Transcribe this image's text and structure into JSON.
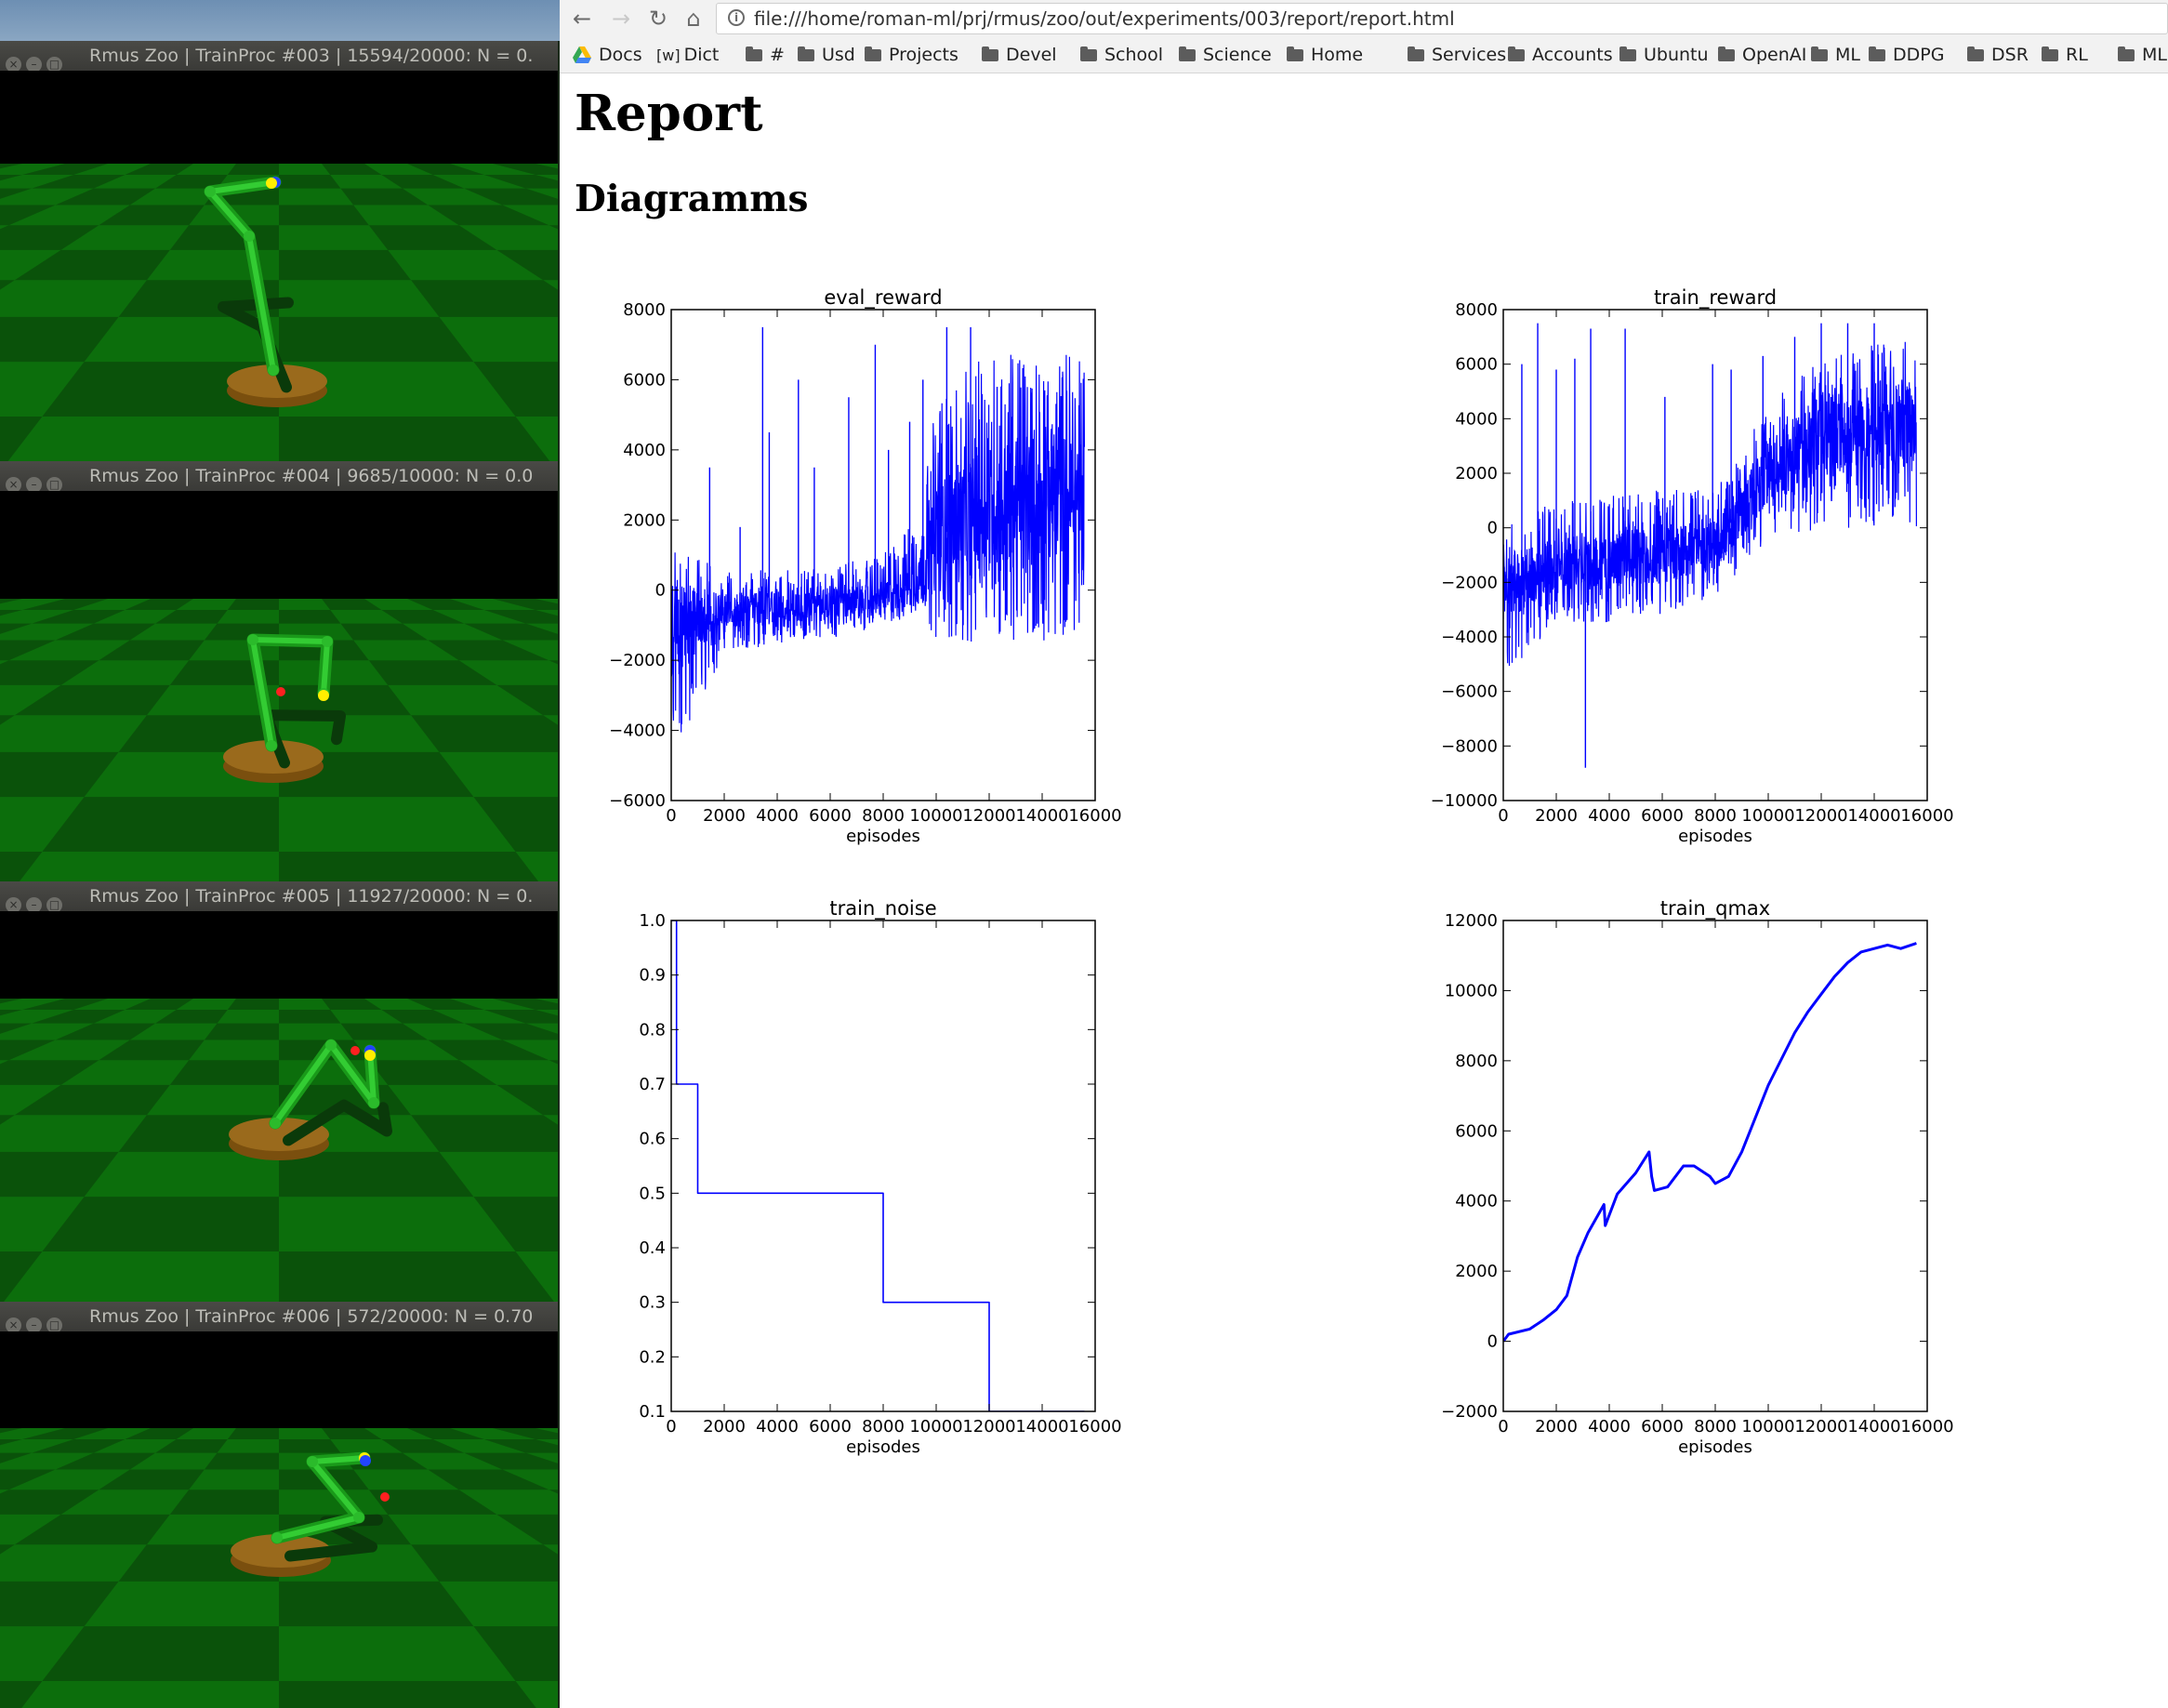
{
  "sim_windows": [
    {
      "buttons": [
        "×",
        "–",
        "□"
      ],
      "title": "Rmus Zoo  |  TrainProc #003  |  15594/20000: N = 0.",
      "top": 0
    },
    {
      "buttons": [
        "×",
        "–",
        "□"
      ],
      "title": "Rmus Zoo  |  TrainProc #004  |  9685/10000: N = 0.0",
      "top": 0
    },
    {
      "buttons": [
        "×",
        "–",
        "□"
      ],
      "title": "Rmus Zoo  |  TrainProc #005  |  11927/20000: N = 0.",
      "top": 0
    },
    {
      "buttons": [
        "×",
        "–",
        "□"
      ],
      "title": "Rmus Zoo  |  TrainProc #006  |  572/20000: N = 0.70",
      "top": 0
    }
  ],
  "browser": {
    "back_icon": "←",
    "forward_icon": "→",
    "reload_icon": "↻",
    "home_icon": "⌂",
    "info_icon": "i",
    "url": "file:///home/roman-ml/prj/rmus/zoo/out/experiments/003/report/report.html",
    "bookmarks": [
      "Docs",
      "Dict",
      "#",
      "Usd",
      "Projects",
      "Devel",
      "School",
      "Science",
      "Home",
      "Services",
      "Accounts",
      "Ubuntu",
      "OpenAI",
      "ML",
      "DDPG",
      "DSR",
      "RL",
      "ML"
    ],
    "wiki_mark": "[w]"
  },
  "page": {
    "title": "Report",
    "subtitle": "Diagramms"
  },
  "chart_data": [
    {
      "type": "line",
      "title": "eval_reward",
      "xlabel": "episodes",
      "ylabel": "",
      "xlim": [
        0,
        16000
      ],
      "ylim": [
        -6000,
        8000
      ],
      "xticks": [
        0,
        2000,
        4000,
        6000,
        8000,
        10000,
        12000,
        14000,
        16000
      ],
      "yticks": [
        -6000,
        -4000,
        -2000,
        0,
        2000,
        4000,
        6000,
        8000
      ],
      "x_max": 15594,
      "color": "#0000ff",
      "profile": "noisy",
      "trend": {
        "x": [
          0,
          2000,
          4000,
          6000,
          8000,
          9500,
          10000,
          12000,
          14000,
          15594
        ],
        "low": [
          -4800,
          -1800,
          -1600,
          -1400,
          -1000,
          -700,
          -1500,
          -1500,
          -1500,
          -1200
        ],
        "high": [
          1400,
          500,
          600,
          700,
          1000,
          2500,
          5500,
          6800,
          7000,
          7000
        ],
        "center": [
          -1200,
          -600,
          -500,
          -400,
          -300,
          300,
          1500,
          2300,
          2600,
          2700
        ]
      },
      "spikes": [
        [
          1450,
          3500
        ],
        [
          2600,
          1800
        ],
        [
          3700,
          4500
        ],
        [
          3450,
          7500
        ],
        [
          4800,
          6000
        ],
        [
          5400,
          3500
        ],
        [
          6700,
          5500
        ],
        [
          7700,
          7000
        ],
        [
          8200,
          4000
        ],
        [
          9000,
          4800
        ],
        [
          9500,
          6000
        ],
        [
          10400,
          7500
        ],
        [
          11300,
          7500
        ],
        [
          12300,
          5800
        ]
      ]
    },
    {
      "type": "line",
      "title": "train_reward",
      "xlabel": "episodes",
      "ylabel": "",
      "xlim": [
        0,
        16000
      ],
      "ylim": [
        -10000,
        8000
      ],
      "xticks": [
        0,
        2000,
        4000,
        6000,
        8000,
        10000,
        12000,
        14000,
        16000
      ],
      "yticks": [
        -10000,
        -8000,
        -6000,
        -4000,
        -2000,
        0,
        2000,
        4000,
        6000,
        8000
      ],
      "x_max": 15594,
      "color": "#0000ff",
      "profile": "noisy",
      "trend": {
        "x": [
          0,
          2000,
          4000,
          6000,
          8000,
          10000,
          12000,
          14000,
          15594
        ],
        "low": [
          -5500,
          -3500,
          -3500,
          -3200,
          -2500,
          -500,
          0,
          0,
          0
        ],
        "high": [
          0,
          1000,
          1200,
          1400,
          1500,
          4500,
          6200,
          6800,
          7000
        ],
        "center": [
          -2200,
          -1400,
          -1200,
          -1000,
          -600,
          2000,
          3500,
          3700,
          3800
        ]
      },
      "spikes": [
        [
          700,
          6000
        ],
        [
          1300,
          7500
        ],
        [
          2000,
          5800
        ],
        [
          2700,
          6200
        ],
        [
          3100,
          -8800
        ],
        [
          3300,
          7300
        ],
        [
          4600,
          7300
        ],
        [
          6100,
          4800
        ],
        [
          7900,
          6000
        ],
        [
          8600,
          5800
        ],
        [
          9800,
          6300
        ],
        [
          11000,
          7000
        ],
        [
          12000,
          7500
        ],
        [
          13000,
          7500
        ],
        [
          14000,
          7500
        ]
      ]
    },
    {
      "type": "line",
      "title": "train_noise",
      "xlabel": "episodes",
      "ylabel": "",
      "xlim": [
        0,
        16000
      ],
      "ylim": [
        0.1,
        1.0
      ],
      "xticks": [
        0,
        2000,
        4000,
        6000,
        8000,
        10000,
        12000,
        14000,
        16000
      ],
      "yticks": [
        0.1,
        0.2,
        0.3,
        0.4,
        0.5,
        0.6,
        0.7,
        0.8,
        0.9,
        1.0
      ],
      "color": "#0000ff",
      "profile": "step",
      "x": [
        0,
        200,
        200,
        1000,
        1000,
        8000,
        8000,
        12000,
        12000,
        15594
      ],
      "y": [
        1.0,
        1.0,
        0.7,
        0.7,
        0.5,
        0.5,
        0.3,
        0.3,
        0.1,
        0.1
      ]
    },
    {
      "type": "line",
      "title": "train_qmax",
      "xlabel": "episodes",
      "ylabel": "",
      "xlim": [
        0,
        16000
      ],
      "ylim": [
        -2000,
        12000
      ],
      "xticks": [
        0,
        2000,
        4000,
        6000,
        8000,
        10000,
        12000,
        14000,
        16000
      ],
      "yticks": [
        -2000,
        0,
        2000,
        4000,
        6000,
        8000,
        10000,
        12000
      ],
      "color": "#0000ff",
      "profile": "smooth",
      "x": [
        0,
        200,
        1000,
        1500,
        2000,
        2400,
        2800,
        3200,
        3800,
        3850,
        4300,
        5000,
        5500,
        5600,
        5700,
        6200,
        6800,
        7200,
        7800,
        8000,
        8500,
        9000,
        10000,
        11000,
        11500,
        12000,
        12500,
        13000,
        13500,
        14000,
        14500,
        15000,
        15594
      ],
      "y": [
        0,
        200,
        350,
        600,
        900,
        1300,
        2400,
        3100,
        3900,
        3300,
        4200,
        4800,
        5400,
        4700,
        4300,
        4400,
        5000,
        5000,
        4700,
        4500,
        4700,
        5400,
        7300,
        8800,
        9400,
        9900,
        10400,
        10800,
        11100,
        11200,
        11300,
        11200,
        11350
      ]
    }
  ]
}
